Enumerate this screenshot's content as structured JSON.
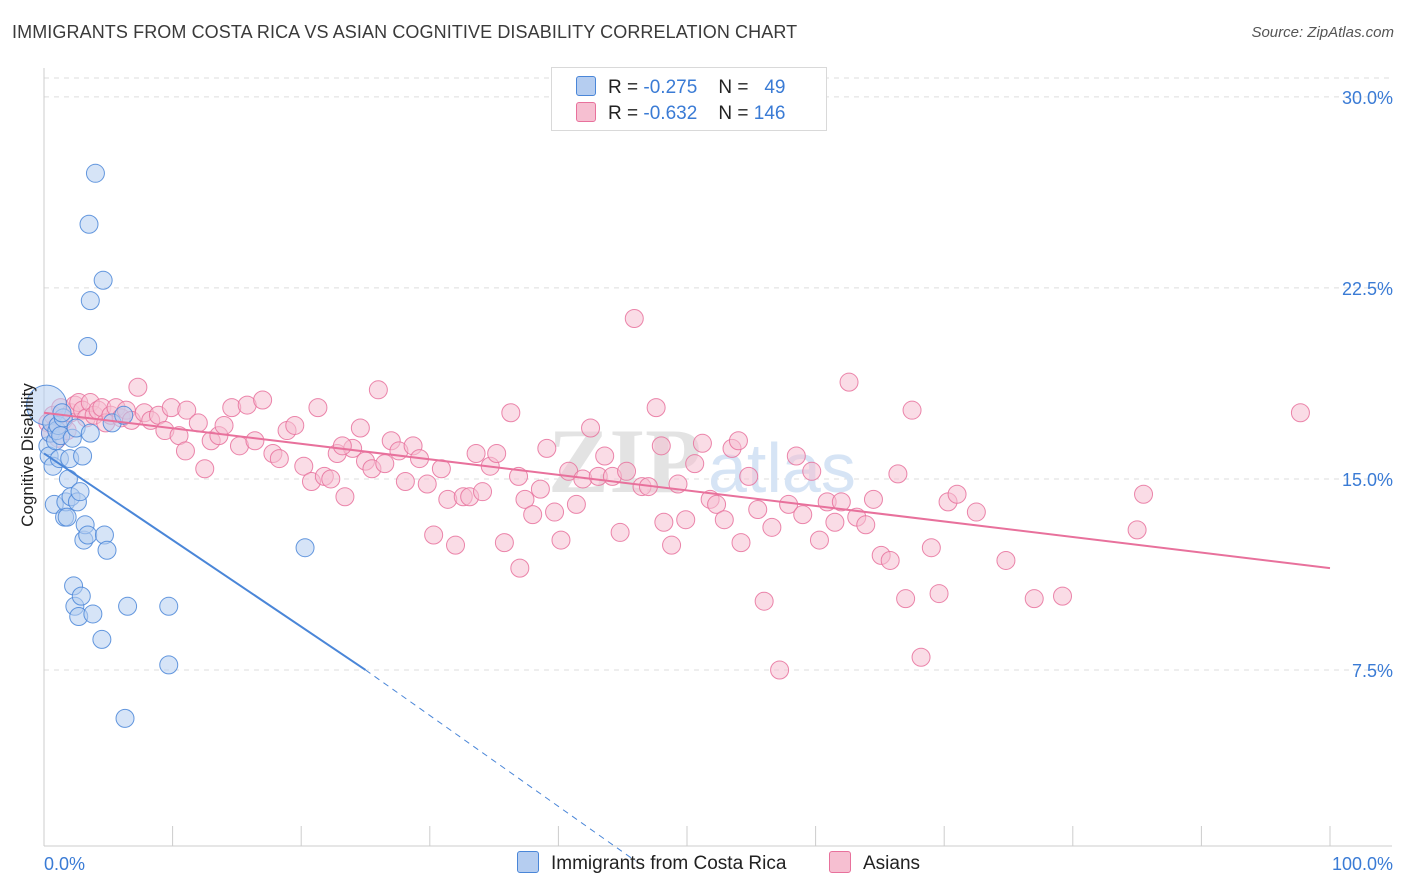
{
  "title": "IMMIGRANTS FROM COSTA RICA VS ASIAN COGNITIVE DISABILITY CORRELATION CHART",
  "source": "Source: ZipAtlas.com",
  "watermark": "ZIPatlas",
  "legend": {
    "blue": {
      "r_label": "R =",
      "r_value": "-0.275",
      "n_label": "N =",
      "n_value": "49"
    },
    "pink": {
      "r_label": "R =",
      "r_value": "-0.632",
      "n_label": "N =",
      "n_value": "146"
    }
  },
  "bottom_legend": {
    "blue": "Immigrants from Costa Rica",
    "pink": "Asians"
  },
  "colors": {
    "blue": "#4a86d8",
    "blue_fill": "#b5cdf0",
    "pink": "#e8719c",
    "pink_fill": "#f6bfd1",
    "axis_text": "#3a7bd5",
    "grid": "#dddddd"
  },
  "chart_data": {
    "type": "scatter",
    "ylabel": "Cognitive Disability",
    "xlim": [
      0,
      100
    ],
    "ylim": [
      0,
      31
    ],
    "x_tick_labels": [
      "0.0%",
      "100.0%"
    ],
    "y_ticks": [
      7.5,
      15.0,
      22.5,
      30.0
    ],
    "y_tick_labels": [
      "7.5%",
      "15.0%",
      "22.5%",
      "30.0%"
    ],
    "grid": true,
    "series": [
      {
        "name": "Immigrants from Costa Rica",
        "color": "blue",
        "points": [
          [
            0.2,
            17.9
          ],
          [
            0.3,
            16.3
          ],
          [
            0.4,
            15.9
          ],
          [
            0.5,
            16.8
          ],
          [
            0.6,
            17.2
          ],
          [
            0.7,
            15.5
          ],
          [
            0.8,
            14.0
          ],
          [
            0.9,
            16.5
          ],
          [
            1.0,
            16.9
          ],
          [
            1.1,
            17.1
          ],
          [
            1.2,
            15.8
          ],
          [
            1.3,
            16.7
          ],
          [
            1.5,
            17.4
          ],
          [
            1.6,
            13.5
          ],
          [
            1.7,
            14.1
          ],
          [
            1.8,
            13.5
          ],
          [
            1.9,
            15.0
          ],
          [
            2.0,
            15.8
          ],
          [
            2.1,
            14.3
          ],
          [
            2.2,
            16.6
          ],
          [
            2.3,
            10.8
          ],
          [
            2.4,
            10.0
          ],
          [
            2.5,
            17.0
          ],
          [
            2.6,
            14.1
          ],
          [
            2.7,
            9.6
          ],
          [
            2.8,
            14.5
          ],
          [
            2.9,
            10.4
          ],
          [
            3.0,
            15.9
          ],
          [
            3.1,
            12.6
          ],
          [
            3.2,
            13.2
          ],
          [
            3.4,
            12.8
          ],
          [
            3.6,
            16.8
          ],
          [
            3.8,
            9.7
          ],
          [
            4.0,
            27.0
          ],
          [
            3.5,
            25.0
          ],
          [
            4.6,
            22.8
          ],
          [
            3.6,
            22.0
          ],
          [
            3.4,
            20.2
          ],
          [
            4.5,
            8.7
          ],
          [
            4.7,
            12.8
          ],
          [
            4.9,
            12.2
          ],
          [
            5.3,
            17.2
          ],
          [
            6.2,
            17.5
          ],
          [
            6.3,
            5.6
          ],
          [
            6.5,
            10.0
          ],
          [
            9.7,
            10.0
          ],
          [
            9.7,
            7.7
          ],
          [
            20.3,
            12.3
          ],
          [
            1.4,
            17.6
          ]
        ],
        "trend": {
          "x0": 0,
          "y0": 16.0,
          "x1": 25,
          "y1": 7.5,
          "dash_to": [
            46,
            0
          ]
        }
      },
      {
        "name": "Asians",
        "color": "pink",
        "points": [
          [
            0.3,
            17.2
          ],
          [
            0.5,
            16.8
          ],
          [
            0.7,
            17.5
          ],
          [
            0.9,
            17.0
          ],
          [
            1.1,
            16.6
          ],
          [
            1.3,
            17.8
          ],
          [
            1.5,
            17.3
          ],
          [
            1.8,
            16.9
          ],
          [
            2.1,
            17.6
          ],
          [
            2.4,
            17.9
          ],
          [
            2.7,
            18.0
          ],
          [
            3.0,
            17.7
          ],
          [
            3.3,
            17.4
          ],
          [
            3.6,
            18.0
          ],
          [
            3.9,
            17.5
          ],
          [
            4.2,
            17.7
          ],
          [
            4.5,
            17.8
          ],
          [
            4.8,
            17.2
          ],
          [
            5.2,
            17.5
          ],
          [
            5.6,
            17.8
          ],
          [
            6.0,
            17.4
          ],
          [
            6.4,
            17.7
          ],
          [
            6.8,
            17.3
          ],
          [
            7.3,
            18.6
          ],
          [
            7.8,
            17.6
          ],
          [
            8.3,
            17.3
          ],
          [
            8.9,
            17.5
          ],
          [
            9.4,
            16.9
          ],
          [
            9.9,
            17.8
          ],
          [
            10.5,
            16.7
          ],
          [
            11.1,
            17.7
          ],
          [
            11.0,
            16.1
          ],
          [
            12.0,
            17.2
          ],
          [
            12.5,
            15.4
          ],
          [
            13.0,
            16.5
          ],
          [
            13.6,
            16.7
          ],
          [
            14.0,
            17.1
          ],
          [
            14.6,
            17.8
          ],
          [
            15.2,
            16.3
          ],
          [
            15.8,
            17.9
          ],
          [
            16.4,
            16.5
          ],
          [
            17.0,
            18.1
          ],
          [
            17.8,
            16.0
          ],
          [
            18.3,
            15.8
          ],
          [
            18.9,
            16.9
          ],
          [
            19.5,
            17.1
          ],
          [
            20.2,
            15.5
          ],
          [
            20.8,
            14.9
          ],
          [
            21.3,
            17.8
          ],
          [
            21.8,
            15.1
          ],
          [
            22.3,
            15.0
          ],
          [
            22.8,
            16.0
          ],
          [
            23.4,
            14.3
          ],
          [
            24.0,
            16.2
          ],
          [
            24.6,
            17.0
          ],
          [
            25.0,
            15.7
          ],
          [
            25.5,
            15.4
          ],
          [
            26.0,
            18.5
          ],
          [
            26.5,
            15.6
          ],
          [
            27.0,
            16.5
          ],
          [
            27.6,
            16.1
          ],
          [
            28.1,
            14.9
          ],
          [
            28.7,
            16.3
          ],
          [
            29.2,
            15.8
          ],
          [
            29.8,
            14.8
          ],
          [
            30.3,
            12.8
          ],
          [
            30.9,
            15.4
          ],
          [
            31.4,
            14.2
          ],
          [
            32.0,
            12.4
          ],
          [
            32.6,
            14.3
          ],
          [
            33.1,
            14.3
          ],
          [
            33.6,
            16.0
          ],
          [
            34.1,
            14.5
          ],
          [
            34.7,
            15.5
          ],
          [
            35.2,
            16.0
          ],
          [
            35.8,
            12.5
          ],
          [
            36.3,
            17.6
          ],
          [
            36.9,
            15.1
          ],
          [
            37.4,
            14.2
          ],
          [
            38.0,
            13.6
          ],
          [
            38.6,
            14.6
          ],
          [
            39.1,
            16.2
          ],
          [
            39.7,
            13.7
          ],
          [
            40.2,
            12.6
          ],
          [
            40.8,
            15.3
          ],
          [
            41.4,
            14.0
          ],
          [
            41.9,
            15.0
          ],
          [
            42.5,
            17.0
          ],
          [
            43.1,
            15.1
          ],
          [
            43.6,
            15.9
          ],
          [
            44.2,
            15.1
          ],
          [
            44.8,
            12.9
          ],
          [
            45.3,
            15.3
          ],
          [
            45.9,
            21.3
          ],
          [
            46.5,
            14.7
          ],
          [
            47.0,
            14.7
          ],
          [
            47.6,
            17.8
          ],
          [
            48.2,
            13.3
          ],
          [
            48.8,
            12.4
          ],
          [
            49.3,
            14.8
          ],
          [
            49.9,
            13.4
          ],
          [
            50.6,
            15.6
          ],
          [
            51.2,
            16.4
          ],
          [
            51.8,
            14.2
          ],
          [
            52.3,
            14.0
          ],
          [
            52.9,
            13.4
          ],
          [
            53.5,
            16.2
          ],
          [
            54.2,
            12.5
          ],
          [
            54.8,
            15.1
          ],
          [
            55.5,
            13.8
          ],
          [
            56.0,
            10.2
          ],
          [
            56.6,
            13.1
          ],
          [
            57.2,
            7.5
          ],
          [
            57.9,
            14.0
          ],
          [
            58.5,
            15.9
          ],
          [
            59.0,
            13.6
          ],
          [
            59.7,
            15.3
          ],
          [
            60.3,
            12.6
          ],
          [
            60.9,
            14.1
          ],
          [
            61.5,
            13.3
          ],
          [
            62.0,
            14.1
          ],
          [
            62.6,
            18.8
          ],
          [
            63.2,
            13.5
          ],
          [
            63.9,
            13.2
          ],
          [
            64.5,
            14.2
          ],
          [
            65.1,
            12.0
          ],
          [
            65.8,
            11.8
          ],
          [
            66.4,
            15.2
          ],
          [
            67.0,
            10.3
          ],
          [
            67.5,
            17.7
          ],
          [
            68.2,
            8.0
          ],
          [
            69.0,
            12.3
          ],
          [
            69.6,
            10.5
          ],
          [
            70.3,
            14.1
          ],
          [
            71.0,
            14.4
          ],
          [
            72.5,
            13.7
          ],
          [
            74.8,
            11.8
          ],
          [
            77.0,
            10.3
          ],
          [
            79.2,
            10.4
          ],
          [
            85.5,
            14.4
          ],
          [
            85.0,
            13.0
          ],
          [
            97.7,
            17.6
          ],
          [
            54.0,
            16.5
          ],
          [
            48.0,
            16.3
          ],
          [
            37.0,
            11.5
          ],
          [
            23.2,
            16.3
          ]
        ],
        "trend": {
          "x0": 0,
          "y0": 17.6,
          "x1": 100,
          "y1": 11.5
        }
      }
    ]
  }
}
